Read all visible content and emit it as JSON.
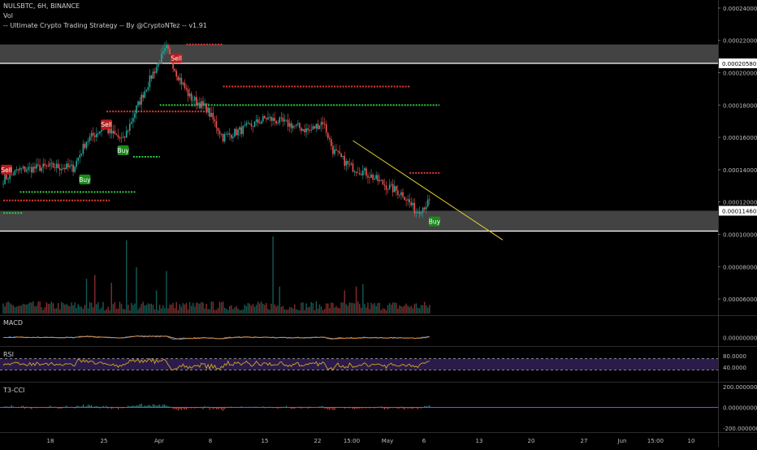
{
  "header": {
    "symbol_line": "NULSBTC, 6H, BINANCE",
    "vol_label": "Vol",
    "strategy_label": "-- Ultimate Crypto Trading Strategy -- By @CryptoNTez -- v1.91"
  },
  "price_axis": {
    "ticks": [
      "0.00024000",
      "0.00022000",
      "0.00020000",
      "0.00018000",
      "0.00016000",
      "0.00014000",
      "0.00012000",
      "0.00010000",
      "0.00008000",
      "0.00006000"
    ],
    "badges": [
      "0.00020580",
      "0.00011460"
    ]
  },
  "panes": {
    "macd": {
      "title": "MACD",
      "ticks": [
        "0.00000000"
      ]
    },
    "rsi": {
      "title": "RSI",
      "ticks": [
        "80.0000",
        "40.0000"
      ]
    },
    "t3cci": {
      "title": "T3-CCI",
      "ticks": [
        "200.00000000",
        "0.00000000",
        "-200.00000000"
      ]
    }
  },
  "time_axis": {
    "labels": [
      "18",
      "25",
      "Apr",
      "8",
      "15",
      "22",
      "15:00",
      "May",
      "6",
      "13",
      "20",
      "27",
      "Jun",
      "15:00",
      "10"
    ]
  },
  "signals": [
    "Sell",
    "Sell",
    "Sell",
    "Buy",
    "Buy",
    "Buy"
  ],
  "colors": {
    "background": "#000000",
    "up_candle": "#26a69a",
    "down_candle": "#ef5350",
    "buy_marker": "#1b8a1b",
    "sell_marker": "#b71c1c",
    "green_level": "#2ecc40",
    "red_level": "#e53935",
    "trendline": "#e0d030",
    "zone_fill": "#5a5a5a",
    "macd_line": "#3d7fd9",
    "signal_line": "#e08a2e",
    "rsi_line": "#d4a520",
    "rsi_band": "#2a1b4a"
  },
  "chart_data": {
    "type": "candlestick",
    "symbol": "NULSBTC",
    "interval": "6H",
    "exchange": "BINANCE",
    "last_price": 0.0001146,
    "y_range": [
      5e-05,
      0.000245
    ],
    "anchors": [
      {
        "t": 0,
        "c": 0.000134
      },
      {
        "t": 10,
        "c": 0.00014
      },
      {
        "t": 30,
        "c": 0.000142
      },
      {
        "t": 42,
        "c": 0.000141
      },
      {
        "t": 50,
        "c": 0.000158
      },
      {
        "t": 60,
        "c": 0.000166
      },
      {
        "t": 72,
        "c": 0.000158
      },
      {
        "t": 80,
        "c": 0.000178
      },
      {
        "t": 90,
        "c": 0.0002
      },
      {
        "t": 98,
        "c": 0.000215
      },
      {
        "t": 104,
        "c": 0.0002
      },
      {
        "t": 112,
        "c": 0.000185
      },
      {
        "t": 122,
        "c": 0.000178
      },
      {
        "t": 132,
        "c": 0.00016
      },
      {
        "t": 144,
        "c": 0.000165
      },
      {
        "t": 158,
        "c": 0.000172
      },
      {
        "t": 172,
        "c": 0.000168
      },
      {
        "t": 184,
        "c": 0.000164
      },
      {
        "t": 192,
        "c": 0.00017
      },
      {
        "t": 198,
        "c": 0.000152
      },
      {
        "t": 208,
        "c": 0.000142
      },
      {
        "t": 218,
        "c": 0.000138
      },
      {
        "t": 230,
        "c": 0.00013
      },
      {
        "t": 240,
        "c": 0.000125
      },
      {
        "t": 248,
        "c": 0.000114
      },
      {
        "t": 256,
        "c": 0.00012
      }
    ],
    "zones": [
      {
        "from": 0.0002058,
        "to": 0.0002175
      },
      {
        "from": 0.000102,
        "to": 0.0001146
      }
    ],
    "levels": [
      {
        "color": "green",
        "price": 0.0001262,
        "t_start": 10,
        "t_end": 80
      },
      {
        "color": "green",
        "price": 0.0001132,
        "t_start": 0,
        "t_end": 12
      },
      {
        "color": "green",
        "price": 0.000148,
        "t_start": 78,
        "t_end": 94
      },
      {
        "color": "green",
        "price": 0.00018,
        "t_start": 94,
        "t_end": 262
      },
      {
        "color": "red",
        "price": 0.000121,
        "t_start": 0,
        "t_end": 64
      },
      {
        "color": "red",
        "price": 0.000176,
        "t_start": 62,
        "t_end": 122
      },
      {
        "color": "red",
        "price": 0.0001915,
        "t_start": 132,
        "t_end": 244
      },
      {
        "color": "red",
        "price": 0.0002175,
        "t_start": 110,
        "t_end": 132
      },
      {
        "color": "red",
        "price": 0.000138,
        "t_start": 244,
        "t_end": 262
      }
    ],
    "trendline": {
      "t1": 210,
      "p1": 0.000158,
      "t2": 300,
      "p2": 9.65e-05
    },
    "markers": [
      {
        "type": "Sell",
        "t": 2,
        "price": 0.00014
      },
      {
        "type": "Buy",
        "t": 49,
        "price": 0.000134
      },
      {
        "type": "Sell",
        "t": 62,
        "price": 0.000168
      },
      {
        "type": "Buy",
        "t": 72,
        "price": 0.000152
      },
      {
        "type": "Sell",
        "t": 104,
        "price": 0.000209
      },
      {
        "type": "Buy",
        "t": 259,
        "price": 0.000108
      }
    ],
    "volume_spikes": [
      {
        "t": 50,
        "v": 0.45
      },
      {
        "t": 55,
        "v": 0.5
      },
      {
        "t": 65,
        "v": 0.4
      },
      {
        "t": 74,
        "v": 0.95
      },
      {
        "t": 80,
        "v": 0.6
      },
      {
        "t": 92,
        "v": 0.3
      },
      {
        "t": 98,
        "v": 0.55
      },
      {
        "t": 162,
        "v": 1.0
      },
      {
        "t": 166,
        "v": 0.35
      },
      {
        "t": 205,
        "v": 0.3
      },
      {
        "t": 212,
        "v": 0.35
      },
      {
        "t": 216,
        "v": 0.38
      }
    ],
    "rsi_bands": [
      70,
      30
    ],
    "x_labels": [
      "18",
      "25",
      "Apr",
      "8",
      "15",
      "22",
      "15:00",
      "May",
      "6",
      "13",
      "20",
      "27",
      "Jun",
      "15:00",
      "10"
    ]
  }
}
